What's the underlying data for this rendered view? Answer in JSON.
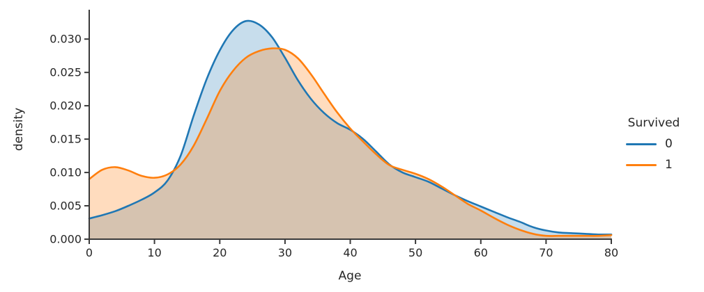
{
  "figure": {
    "background_color": "#ffffff",
    "spine_color": "#3a3a3a",
    "text_color": "#262626"
  },
  "chart_data": {
    "type": "area",
    "subtype": "kde-density",
    "title": "",
    "xlabel": "Age",
    "ylabel": "density",
    "xlim": [
      0,
      80
    ],
    "ylim": [
      0,
      0.0344
    ],
    "grid": false,
    "xticks": [
      0,
      10,
      20,
      30,
      40,
      50,
      60,
      70,
      80
    ],
    "xtick_labels": [
      "0",
      "10",
      "20",
      "30",
      "40",
      "50",
      "60",
      "70",
      "80"
    ],
    "yticks": [
      0.0,
      0.005,
      0.01,
      0.015,
      0.02,
      0.025,
      0.03
    ],
    "ytick_labels": [
      "0.000",
      "0.005",
      "0.010",
      "0.015",
      "0.020",
      "0.025",
      "0.030"
    ],
    "legend": {
      "title": "Survived",
      "position": "right-outside",
      "frame": false
    },
    "x": [
      0,
      2,
      4,
      6,
      8,
      10,
      12,
      14,
      16,
      18,
      20,
      22,
      24,
      26,
      28,
      30,
      32,
      34,
      36,
      38,
      40,
      42,
      44,
      46,
      48,
      50,
      52,
      54,
      56,
      58,
      60,
      62,
      64,
      66,
      68,
      70,
      72,
      74,
      76,
      78,
      80
    ],
    "series": [
      {
        "name": "0",
        "color": "#1f77b4",
        "fill_alpha": 0.25,
        "line_width": 2.6,
        "values": [
          0.0031,
          0.0036,
          0.0042,
          0.005,
          0.0059,
          0.007,
          0.0088,
          0.0125,
          0.0185,
          0.024,
          0.0283,
          0.0313,
          0.0327,
          0.0322,
          0.0303,
          0.0272,
          0.0238,
          0.021,
          0.0189,
          0.0174,
          0.0164,
          0.015,
          0.0131,
          0.0112,
          0.01,
          0.0093,
          0.0086,
          0.0076,
          0.0066,
          0.0057,
          0.0049,
          0.0041,
          0.0033,
          0.0026,
          0.0018,
          0.0013,
          0.001,
          0.0009,
          0.0008,
          0.0007,
          0.0007
        ]
      },
      {
        "name": "1",
        "color": "#ff7f0e",
        "fill_alpha": 0.27,
        "line_width": 2.6,
        "values": [
          0.009,
          0.0104,
          0.0108,
          0.0103,
          0.0095,
          0.0092,
          0.0097,
          0.0112,
          0.014,
          0.018,
          0.0222,
          0.0252,
          0.0272,
          0.0282,
          0.0286,
          0.0284,
          0.0271,
          0.0247,
          0.0218,
          0.019,
          0.0166,
          0.0146,
          0.0127,
          0.0111,
          0.0104,
          0.0098,
          0.009,
          0.0079,
          0.0066,
          0.0053,
          0.0043,
          0.0032,
          0.0022,
          0.0014,
          0.0008,
          0.0005,
          0.0005,
          0.0005,
          0.0005,
          0.0005,
          0.0006
        ]
      }
    ]
  }
}
